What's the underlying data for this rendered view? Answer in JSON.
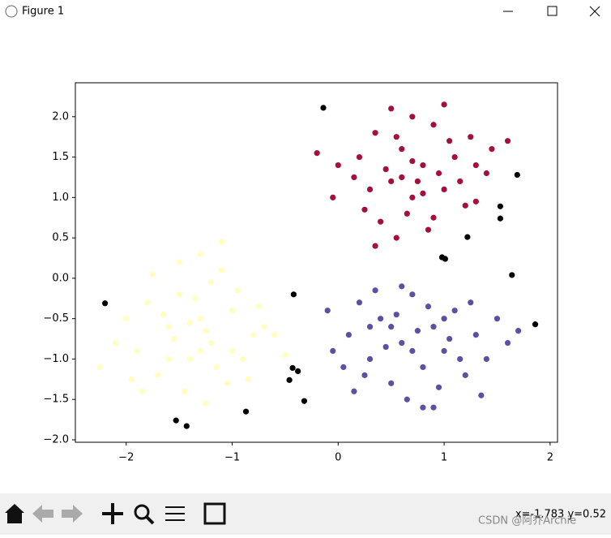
{
  "window": {
    "title": "Figure 1",
    "status": "x=-1.783 y=0.52",
    "watermark": "CSDN @阿乔Archie"
  },
  "chart_data": {
    "type": "scatter",
    "xlim": [
      -2.48,
      2.07
    ],
    "ylim": [
      -2.03,
      2.42
    ],
    "xticks": [
      {
        "value": -2,
        "label": "−2"
      },
      {
        "value": -1,
        "label": "−1"
      },
      0,
      1,
      2
    ],
    "yticks": [
      {
        "value": -2,
        "label": "−2.0"
      },
      {
        "value": -1.5,
        "label": "−1.5"
      },
      {
        "value": -1,
        "label": "−1.0"
      },
      {
        "value": -0.5,
        "label": "−0.5"
      },
      {
        "value": 0,
        "label": "0.0"
      },
      0.5,
      {
        "value": 1,
        "label": "1.0"
      },
      1.5,
      {
        "value": 2,
        "label": "2.0"
      }
    ],
    "series": [
      {
        "color": "#ffffbf",
        "x": [
          -2.25,
          -2.0,
          -1.9,
          -1.8,
          -1.7,
          -1.6,
          -1.5,
          -1.4,
          -1.3,
          -1.2,
          -1.1,
          -1.0,
          -0.9,
          -0.8,
          -0.7,
          -0.6,
          -1.45,
          -1.25,
          -1.05,
          -1.75,
          -1.3,
          -1.1,
          -1.55,
          -1.35,
          -1.15,
          -0.95,
          -1.65,
          -1.85,
          -2.1,
          -1.0,
          -0.85,
          -0.5,
          -1.25,
          -1.4,
          -1.2,
          -1.6,
          -1.95,
          -0.75,
          -1.5,
          -1.3
        ],
        "y": [
          -1.1,
          -0.5,
          -0.9,
          -0.3,
          -1.2,
          -0.6,
          -0.2,
          -1.0,
          -0.5,
          -0.8,
          0.1,
          -0.4,
          -1.0,
          -0.7,
          -0.6,
          -0.7,
          -1.4,
          -1.55,
          -1.3,
          0.05,
          0.3,
          0.45,
          -0.75,
          -0.25,
          -1.1,
          -0.15,
          -0.45,
          -1.4,
          -0.8,
          -0.9,
          -1.25,
          -0.95,
          -0.65,
          -0.55,
          -0.05,
          -1.0,
          -1.25,
          -0.35,
          0.2,
          -0.9
        ]
      },
      {
        "color": "#5e4fa2",
        "x": [
          0.1,
          0.2,
          0.3,
          0.4,
          0.5,
          0.6,
          0.7,
          0.8,
          0.9,
          1.0,
          1.1,
          1.2,
          1.3,
          1.4,
          1.5,
          0.05,
          0.15,
          0.35,
          0.45,
          0.55,
          0.65,
          0.75,
          0.85,
          0.95,
          1.05,
          1.15,
          1.25,
          1.35,
          1.6,
          1.7,
          -0.1,
          -0.05,
          0.25,
          0.6,
          0.8,
          0.9,
          0.7,
          0.5,
          1.0,
          0.3
        ],
        "y": [
          -0.7,
          -0.3,
          -1.0,
          -0.5,
          -1.3,
          -0.8,
          -0.2,
          -1.1,
          -0.6,
          -0.9,
          -0.4,
          -1.2,
          -0.7,
          -1.0,
          -0.5,
          -1.1,
          -1.4,
          -0.15,
          -0.85,
          -0.45,
          -1.5,
          -0.65,
          -0.35,
          -1.35,
          -0.75,
          -1.0,
          -0.3,
          -1.45,
          -0.8,
          -0.65,
          -0.4,
          -0.9,
          -1.2,
          -0.1,
          -1.6,
          -1.6,
          -0.9,
          -0.6,
          -0.5,
          -0.6
        ]
      },
      {
        "color": "#a50f3b",
        "x": [
          0.2,
          0.35,
          0.5,
          0.6,
          0.7,
          0.8,
          0.9,
          1.0,
          1.1,
          1.2,
          0.4,
          0.55,
          0.65,
          0.75,
          0.85,
          0.95,
          1.05,
          1.15,
          1.3,
          1.45,
          0.3,
          0.45,
          0.25,
          0.15,
          0.0,
          -0.05,
          -0.2,
          0.5,
          0.7,
          1.0,
          1.4,
          1.3,
          0.6,
          0.8,
          0.9,
          0.7,
          0.55,
          1.6,
          1.25,
          0.35
        ],
        "y": [
          1.5,
          1.8,
          1.2,
          1.6,
          1.0,
          1.4,
          1.9,
          1.1,
          1.5,
          0.9,
          0.7,
          0.5,
          0.8,
          1.2,
          0.6,
          1.3,
          1.7,
          1.2,
          1.4,
          1.6,
          1.1,
          1.35,
          0.85,
          1.25,
          1.4,
          1.0,
          1.55,
          2.1,
          2.0,
          2.15,
          1.3,
          0.95,
          1.25,
          1.05,
          0.75,
          1.45,
          1.75,
          1.7,
          1.75,
          0.4
        ]
      },
      {
        "color": "#000000",
        "x": [
          -0.14,
          1.69,
          1.53,
          1.53,
          1.22,
          0.98,
          1.01,
          1.64,
          1.86,
          -2.2,
          -0.42,
          -0.43,
          -0.38,
          -0.46,
          -0.32,
          -0.87,
          -1.53,
          -1.43
        ],
        "y": [
          2.11,
          1.28,
          0.89,
          0.74,
          0.51,
          0.26,
          0.24,
          0.04,
          -0.57,
          -0.31,
          -0.2,
          -1.11,
          -1.15,
          -1.26,
          -1.52,
          -1.65,
          -1.76,
          -1.83
        ]
      }
    ]
  }
}
